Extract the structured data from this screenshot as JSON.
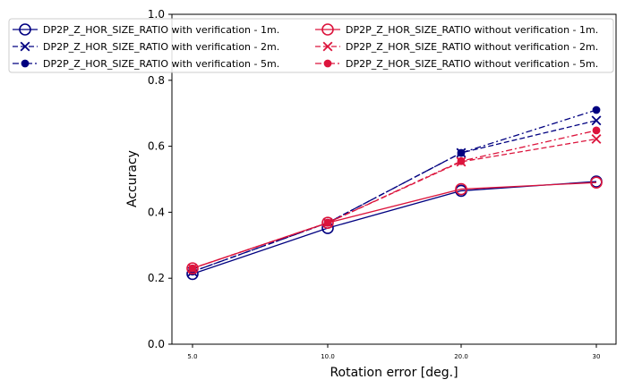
{
  "chart_data": {
    "type": "line",
    "categories": [
      "5.0",
      "10.0",
      "20.0",
      "30"
    ],
    "xlabel": "Rotation error [deg.]",
    "ylabel": "Accuracy",
    "ylim": [
      0,
      1.0
    ],
    "yticks": [
      "0.0",
      "0.2",
      "0.4",
      "0.6",
      "0.8",
      "1.0"
    ],
    "grid": false,
    "legend_position": "top",
    "series": [
      {
        "name": "DP2P_Z_HOR_SIZE_RATIO with verification - 1m.",
        "color": "#000080",
        "linestyle": "solid",
        "marker": "circle-open",
        "values": [
          0.213,
          0.352,
          0.465,
          0.493
        ]
      },
      {
        "name": "DP2P_Z_HOR_SIZE_RATIO with verification - 2m.",
        "color": "#000080",
        "linestyle": "dashed",
        "marker": "x",
        "values": [
          0.22,
          0.368,
          0.58,
          0.678
        ]
      },
      {
        "name": "DP2P_Z_HOR_SIZE_RATIO with verification - 5m.",
        "color": "#000080",
        "linestyle": "dashdot",
        "marker": "dot",
        "values": [
          0.22,
          0.368,
          0.58,
          0.71
        ]
      },
      {
        "name": "DP2P_Z_HOR_SIZE_RATIO without verification - 1m.",
        "color": "#dc143c",
        "linestyle": "solid",
        "marker": "circle-open",
        "values": [
          0.23,
          0.368,
          0.47,
          0.49
        ]
      },
      {
        "name": "DP2P_Z_HOR_SIZE_RATIO without verification - 2m.",
        "color": "#dc143c",
        "linestyle": "dashed",
        "marker": "x",
        "values": [
          0.23,
          0.368,
          0.553,
          0.622
        ]
      },
      {
        "name": "DP2P_Z_HOR_SIZE_RATIO without verification - 5m.",
        "color": "#dc143c",
        "linestyle": "dashdot",
        "marker": "dot",
        "values": [
          0.23,
          0.368,
          0.555,
          0.648
        ]
      }
    ]
  }
}
